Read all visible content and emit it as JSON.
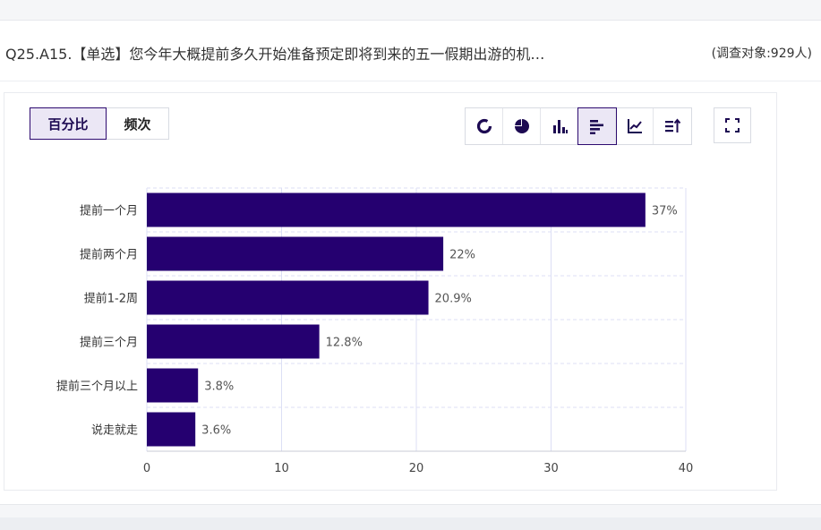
{
  "question": {
    "title": "Q25.A15.【单选】您今年大概提前多久开始准备预定即将到来的五一假期出游的机…",
    "count": "(调查对象:929人)"
  },
  "toggle": {
    "percent_label": "百分比",
    "frequency_label": "频次",
    "selected": "百分比"
  },
  "toolbar": {
    "icons": [
      "donut-chart-icon",
      "pie-chart-icon",
      "column-chart-icon",
      "bar-chart-icon",
      "line-chart-icon",
      "sort-icon"
    ],
    "active": "bar-chart-icon",
    "expand_icon": "expand-icon"
  },
  "colors": {
    "bar": "#250070",
    "grid": "#dcdff5",
    "accent": "#2d0a6f"
  },
  "chart_data": {
    "type": "bar",
    "orientation": "horizontal",
    "categories": [
      "提前一个月",
      "提前两个月",
      "提前1-2周",
      "提前三个月",
      "提前三个月以上",
      "说走就走"
    ],
    "values": [
      37,
      22,
      20.9,
      12.8,
      3.8,
      3.6
    ],
    "value_labels": [
      "37%",
      "22%",
      "20.9%",
      "12.8%",
      "3.8%",
      "3.6%"
    ],
    "xlim": [
      0,
      40
    ],
    "xticks": [
      0,
      10,
      20,
      30,
      40
    ],
    "grid": true,
    "title": "",
    "xlabel": "",
    "ylabel": ""
  }
}
